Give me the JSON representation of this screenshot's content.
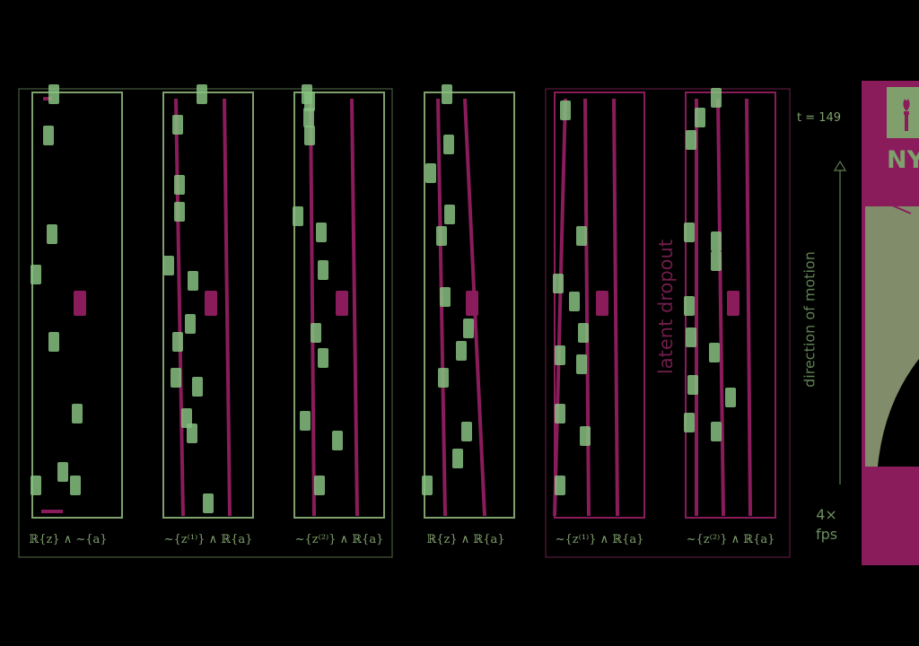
{
  "colors": {
    "background": "#000000",
    "green": "#7fa06d",
    "green_bright": "#86bf80",
    "magenta": "#8a1c5b",
    "magenta_dark": "#6f1d4a"
  },
  "panels": [
    {
      "caption": "ℝ{z} ∧ ~{a}",
      "frame_color": "green"
    },
    {
      "caption": "~{z⁽¹⁾} ∧ ℝ{a}",
      "frame_color": "green"
    },
    {
      "caption": "~{z⁽²⁾} ∧ ℝ{a}",
      "frame_color": "green"
    },
    {
      "caption": "ℝ{z} ∧ ℝ{a}",
      "frame_color": "green"
    },
    {
      "caption": "~{z⁽¹⁾} ∧ ℝ{a}",
      "frame_color": "magenta"
    },
    {
      "caption": "~{z⁽²⁾} ∧ ℝ{a}",
      "frame_color": "magenta"
    }
  ],
  "labels": {
    "time": "t = 149",
    "direction": "direction of motion",
    "dropout": "latent dropout",
    "fps_line1": "4×",
    "fps_line2": "fps"
  },
  "logo": {
    "text": "NY",
    "icon": "torch-icon"
  }
}
